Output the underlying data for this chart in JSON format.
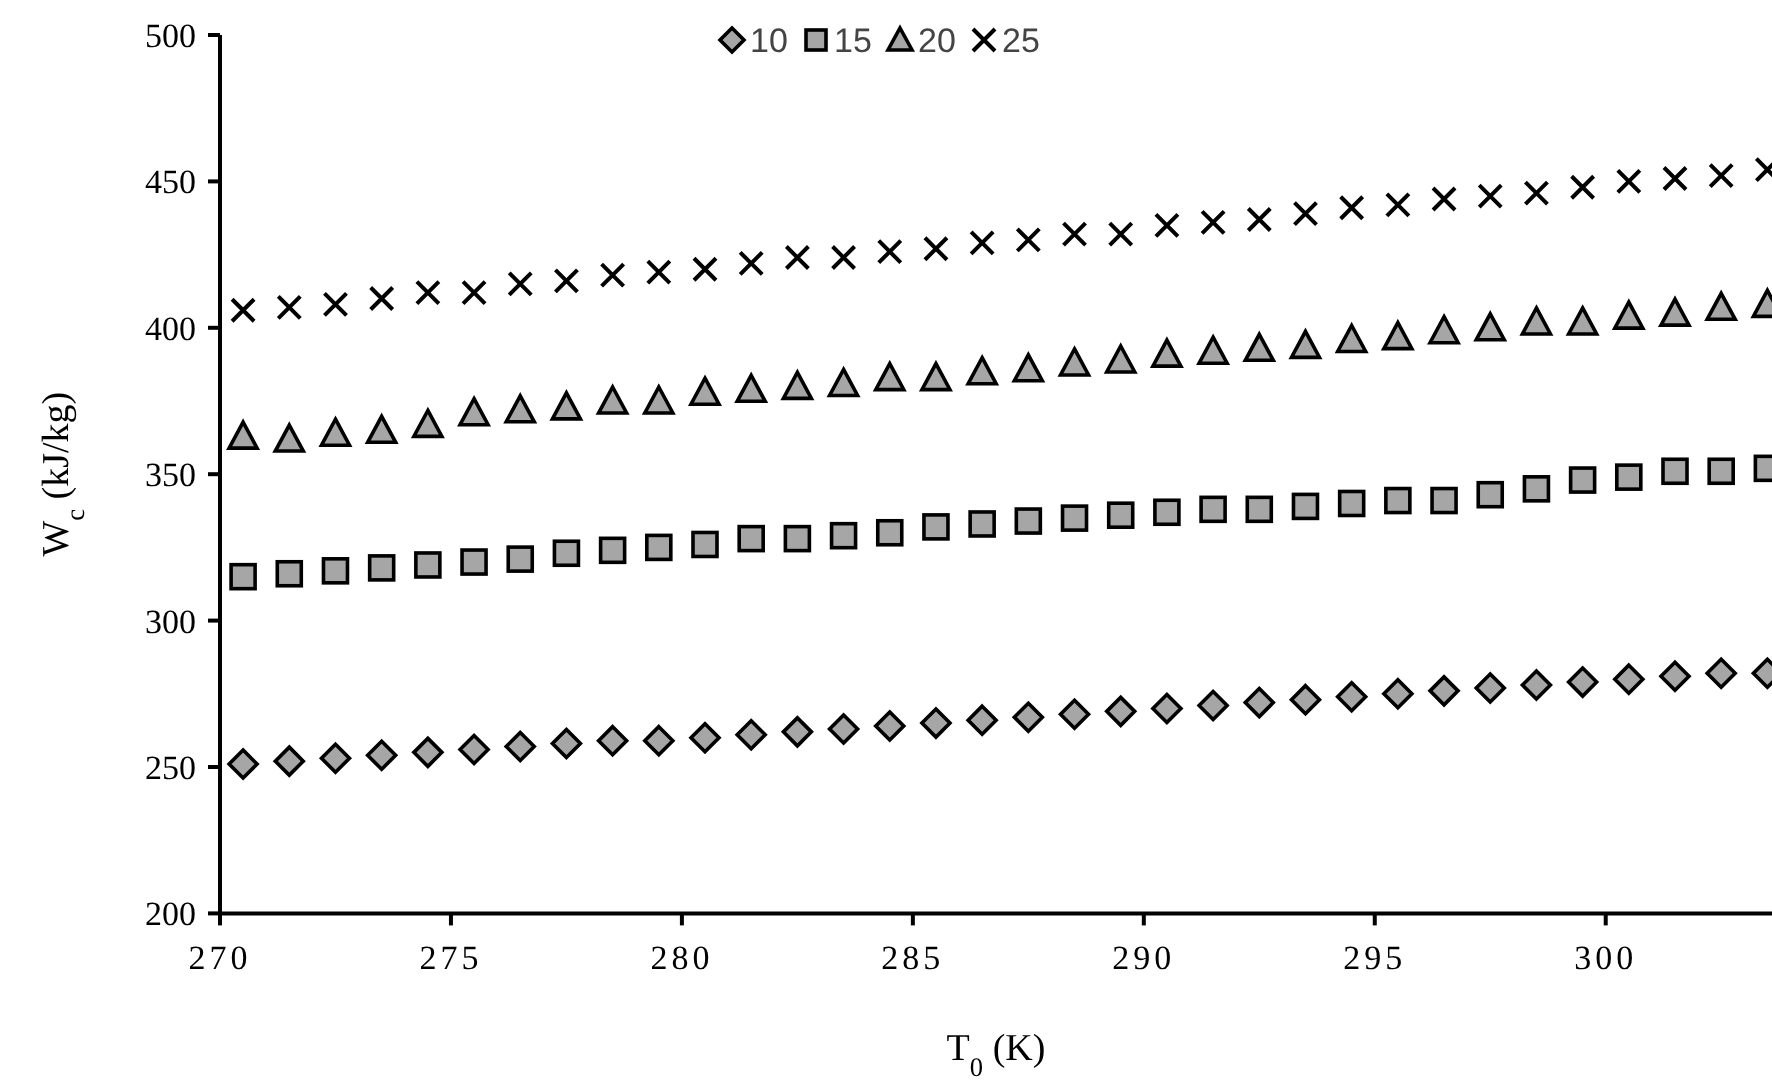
{
  "chart_data": {
    "type": "scatter",
    "xlabel": "T$_{0}$ (K)",
    "ylabel": "W$_{c}$ (kJ/kg)",
    "x": [
      270.5,
      271.5,
      272.5,
      273.5,
      274.5,
      275.5,
      276.5,
      277.5,
      278.5,
      279.5,
      280.5,
      281.5,
      282.5,
      283.5,
      284.5,
      285.5,
      286.5,
      287.5,
      288.5,
      289.5,
      290.5,
      291.5,
      292.5,
      293.5,
      294.5,
      295.5,
      296.5,
      297.5,
      298.5,
      299.5,
      300.5,
      301.5,
      302.5,
      303.5
    ],
    "series": [
      {
        "name": "10",
        "color": "#a6a6a6",
        "marker": "diamond",
        "values": [
          251,
          252,
          253,
          254,
          255,
          256,
          257,
          258,
          259,
          259,
          260,
          261,
          262,
          263,
          264,
          265,
          266,
          267,
          268,
          269,
          270,
          271,
          272,
          273,
          274,
          275,
          276,
          277,
          278,
          279,
          280,
          281,
          282,
          282
        ]
      },
      {
        "name": "15",
        "color": "#a6a6a6",
        "marker": "square",
        "values": [
          315,
          316,
          317,
          318,
          319,
          320,
          321,
          323,
          324,
          325,
          326,
          328,
          328,
          329,
          330,
          332,
          333,
          334,
          335,
          336,
          337,
          338,
          338,
          339,
          340,
          341,
          341,
          343,
          345,
          348,
          349,
          351,
          351,
          352
        ]
      },
      {
        "name": "20",
        "color": "#a6a6a6",
        "marker": "triangle",
        "values": [
          363,
          362,
          364,
          365,
          367,
          371,
          372,
          373,
          375,
          375,
          378,
          379,
          380,
          381,
          383,
          383,
          385,
          386,
          388,
          389,
          391,
          392,
          393,
          394,
          396,
          397,
          399,
          400,
          402,
          402,
          404,
          405,
          407,
          408
        ]
      },
      {
        "name": "25",
        "color": "#000000",
        "marker": "cross",
        "values": [
          406,
          407,
          408,
          410,
          412,
          412,
          415,
          416,
          418,
          419,
          420,
          422,
          424,
          424,
          426,
          427,
          429,
          430,
          432,
          432,
          435,
          436,
          437,
          439,
          441,
          442,
          444,
          445,
          446,
          448,
          450,
          451,
          452,
          454
        ]
      }
    ],
    "xlim": [
      270,
      303.6
    ],
    "xticks": [
      270,
      275,
      280,
      285,
      290,
      295,
      300
    ],
    "ylim": [
      200,
      500
    ],
    "yticks": [
      200,
      250,
      300,
      350,
      400,
      450,
      500
    ],
    "grid": false,
    "legend": "top"
  }
}
